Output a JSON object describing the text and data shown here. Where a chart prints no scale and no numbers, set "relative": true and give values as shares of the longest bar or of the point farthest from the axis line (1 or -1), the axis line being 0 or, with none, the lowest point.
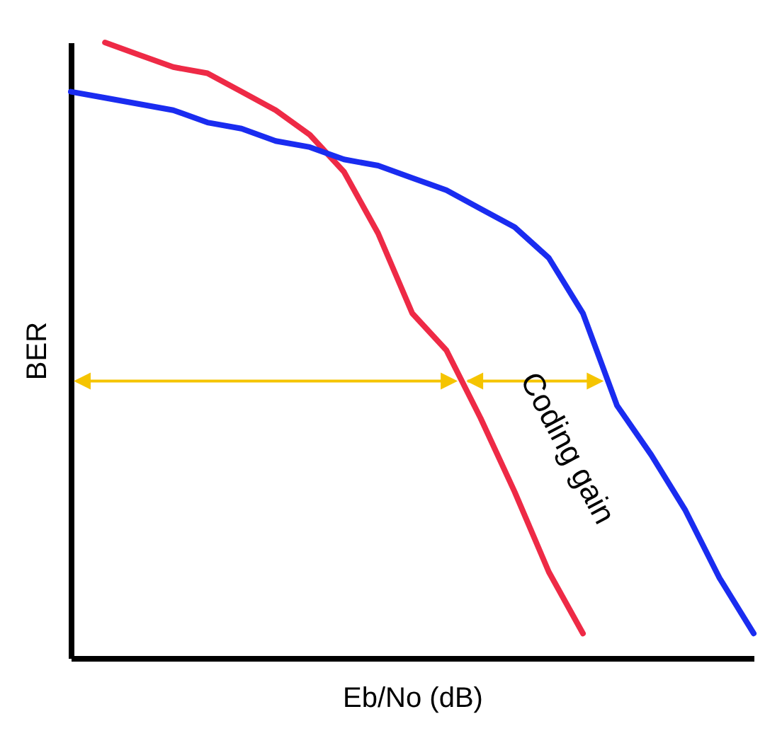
{
  "chart_data": {
    "type": "line",
    "xlabel": "Eb/No (dB)",
    "ylabel": "BER",
    "relative": true,
    "categories": [
      null,
      null,
      null,
      null,
      null,
      null,
      null,
      null,
      null,
      null,
      null,
      null,
      null,
      null,
      null,
      null,
      null,
      null,
      null,
      null,
      null
    ],
    "series": [
      {
        "color": "#ee2a46",
        "values": [
          null,
          1.0,
          0.98,
          0.96,
          0.95,
          0.92,
          0.89,
          0.85,
          0.79,
          0.69,
          0.56,
          0.5,
          0.39,
          0.27,
          0.14,
          0.04,
          null,
          null,
          null,
          null,
          null
        ]
      },
      {
        "color": "#1a2cf0",
        "values": [
          0.92,
          0.91,
          0.9,
          0.89,
          0.87,
          0.86,
          0.84,
          0.83,
          0.81,
          0.8,
          0.78,
          0.76,
          0.73,
          0.7,
          0.65,
          0.56,
          0.41,
          0.33,
          0.24,
          0.13,
          0.04
        ]
      }
    ],
    "annotations": [
      "Coding gain"
    ]
  }
}
